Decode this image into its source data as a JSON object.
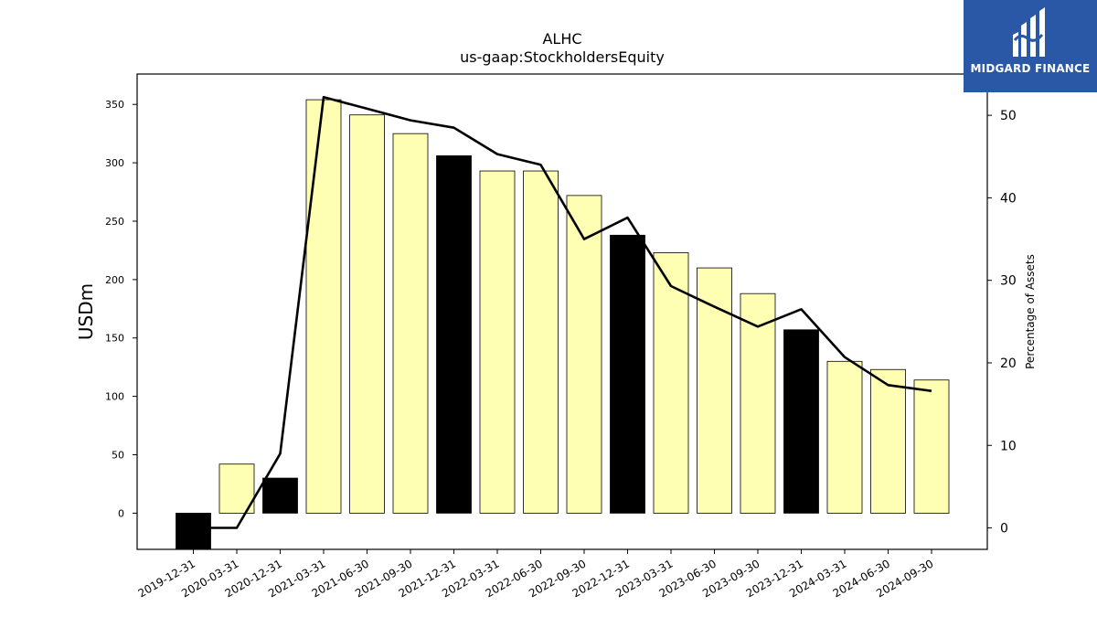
{
  "brand": {
    "name": "MIDGARD FINANCE",
    "bg_color": "#2b57a7",
    "icon": "midgard-logo-icon"
  },
  "chart_data": {
    "type": "bar",
    "title": "ALHC",
    "subtitle": "us-gaap:StockholdersEquity",
    "ylabel": "USDm",
    "y2label": "Percentage of Assets",
    "categories": [
      "2019-12-31",
      "2020-03-31",
      "2020-12-31",
      "2021-03-31",
      "2021-06-30",
      "2021-09-30",
      "2021-12-31",
      "2022-03-31",
      "2022-06-30",
      "2022-09-30",
      "2022-12-31",
      "2023-03-31",
      "2023-06-30",
      "2023-09-30",
      "2023-12-31",
      "2024-03-31",
      "2024-06-30",
      "2024-09-30"
    ],
    "series": [
      {
        "type": "bar",
        "values": [
          -31,
          42,
          30,
          354,
          341,
          325,
          306,
          293,
          293,
          272,
          238,
          223,
          210,
          188,
          157,
          130,
          123,
          114
        ],
        "annual_flags": [
          true,
          false,
          true,
          false,
          false,
          false,
          true,
          false,
          false,
          false,
          true,
          false,
          false,
          false,
          true,
          false,
          false,
          false
        ]
      },
      {
        "type": "line",
        "axis": "right",
        "values": [
          0,
          0,
          9,
          52.2,
          50.8,
          49.4,
          48.5,
          45.3,
          44.0,
          35.0,
          37.6,
          29.3,
          26.8,
          24.4,
          26.5,
          20.7,
          17.3,
          16.6
        ]
      }
    ],
    "ylim": [
      -31,
      376
    ],
    "y_ticks": [
      0,
      50,
      100,
      150,
      200,
      250,
      300,
      350
    ],
    "y2lim": [
      -2.6,
      55.0
    ],
    "y2_ticks": [
      0,
      10,
      20,
      30,
      40,
      50
    ],
    "colors": {
      "annual_bar": "#000000",
      "quarter_bar": "#ffffb3",
      "bar_edge": "#000000",
      "line": "#000000"
    },
    "grid": false,
    "legend": "none"
  }
}
